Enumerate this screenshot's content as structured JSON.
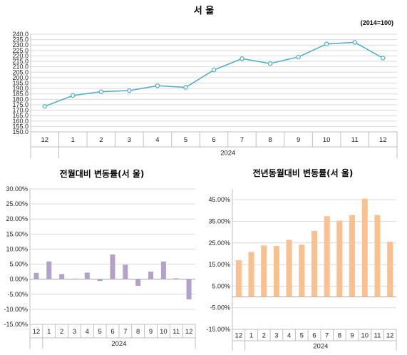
{
  "chart_data": [
    {
      "type": "line",
      "title": "서  울",
      "subtitle": "(2014=100)",
      "categories": [
        "12",
        "1",
        "2",
        "3",
        "4",
        "5",
        "6",
        "7",
        "8",
        "9",
        "10",
        "11",
        "12"
      ],
      "group_label": "2024",
      "series": [
        {
          "values": [
            173.5,
            183.5,
            187.0,
            188.0,
            192.5,
            191.0,
            207.0,
            217.5,
            213.0,
            219.0,
            231.0,
            232.5,
            218.0
          ]
        }
      ],
      "ylim": [
        150,
        240
      ],
      "ytick_step": 5,
      "ytick_format": "0.0",
      "grid": true,
      "colors": {
        "line": "#4bacc6",
        "marker_fill": "#ffffff"
      }
    },
    {
      "type": "bar",
      "title": "전월대비 변동률(서  울)",
      "categories": [
        "12",
        "1",
        "2",
        "3",
        "4",
        "5",
        "6",
        "7",
        "8",
        "9",
        "10",
        "11",
        "12"
      ],
      "group_label": "2024",
      "series": [
        {
          "values": [
            2.1,
            5.9,
            1.7,
            0.2,
            2.2,
            -0.6,
            8.2,
            4.8,
            -2.2,
            2.5,
            5.9,
            0.3,
            -6.7
          ]
        }
      ],
      "ylim": [
        -15,
        30
      ],
      "ytick_step": 5,
      "ytick_format": "0.00%",
      "grid": true,
      "colors": {
        "bar": "#b3a2c7"
      }
    },
    {
      "type": "bar",
      "title": "전년동월대비 변동률(서  울)",
      "categories": [
        "12",
        "1",
        "2",
        "3",
        "4",
        "5",
        "6",
        "7",
        "8",
        "9",
        "10",
        "11",
        "12"
      ],
      "group_label": "2024",
      "series": [
        {
          "values": [
            17.0,
            20.8,
            23.8,
            23.6,
            26.4,
            24.2,
            30.6,
            37.4,
            35.3,
            37.9,
            45.5,
            37.9,
            25.5
          ]
        }
      ],
      "ylim": [
        -15,
        50
      ],
      "ytick_values": [
        -15,
        -5,
        5,
        15,
        25,
        35,
        45
      ],
      "ytick_format": "0.00%",
      "grid": true,
      "colors": {
        "bar": "#fac090"
      }
    }
  ]
}
